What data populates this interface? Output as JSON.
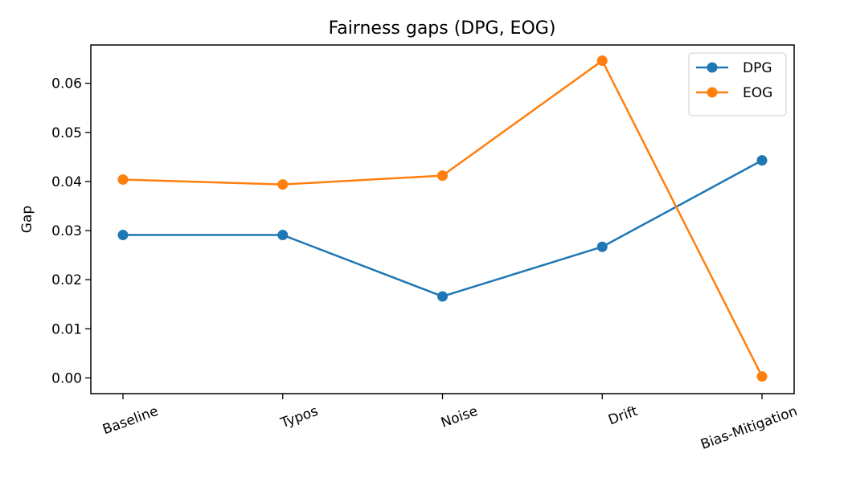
{
  "chart_data": {
    "type": "line",
    "title": "Fairness gaps (DPG, EOG)",
    "xlabel": "",
    "ylabel": "Gap",
    "categories": [
      "Baseline",
      "Typos",
      "Noise",
      "Drift",
      "Bias-Mitigation"
    ],
    "ylim": [
      -0.0032,
      0.0678
    ],
    "yticks": [
      0.0,
      0.01,
      0.02,
      0.03,
      0.04,
      0.05,
      0.06
    ],
    "ytick_labels": [
      "0.00",
      "0.01",
      "0.02",
      "0.03",
      "0.04",
      "0.05",
      "0.06"
    ],
    "grid": false,
    "legend_position": "top-right",
    "series": [
      {
        "name": "DPG",
        "color": "#1f77b4",
        "marker": "circle",
        "values": [
          0.0291,
          0.0291,
          0.0166,
          0.0267,
          0.0443
        ]
      },
      {
        "name": "EOG",
        "color": "#ff7f0e",
        "marker": "circle",
        "values": [
          0.0404,
          0.0394,
          0.0412,
          0.0646,
          0.0003
        ]
      }
    ]
  }
}
